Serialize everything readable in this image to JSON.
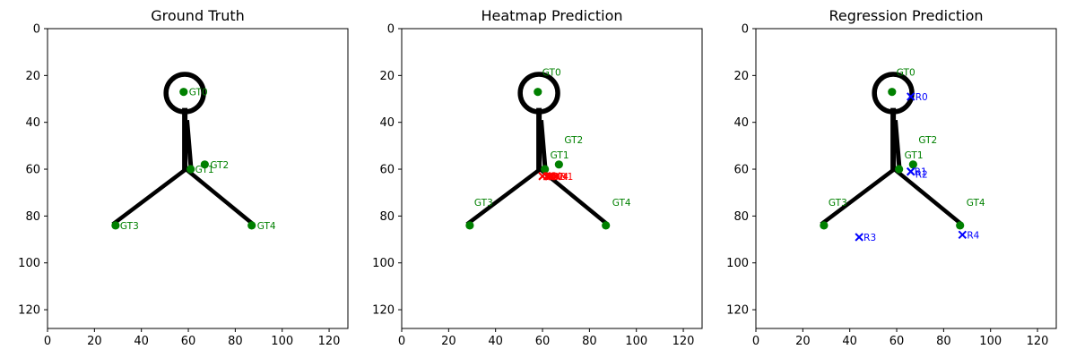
{
  "colors": {
    "ground_truth": "#008000",
    "heatmap": "#ff0000",
    "regression": "#0000ff",
    "figure": "#000000"
  },
  "chart_data": [
    {
      "type": "scatter",
      "title": "Ground Truth",
      "xlim": [
        0,
        128
      ],
      "ylim": [
        128,
        0
      ],
      "x_ticks": [
        0,
        20,
        40,
        60,
        80,
        100,
        120
      ],
      "y_ticks": [
        0,
        20,
        40,
        60,
        80,
        100,
        120
      ],
      "grid": false,
      "series": [
        {
          "role": "ground_truth",
          "marker": "circle",
          "points": [
            {
              "label": "GT0",
              "x": 58,
              "y": 27
            },
            {
              "label": "GT1",
              "x": 61,
              "y": 60
            },
            {
              "label": "GT2",
              "x": 67,
              "y": 58
            },
            {
              "label": "GT3",
              "x": 29,
              "y": 84
            },
            {
              "label": "GT4",
              "x": 87,
              "y": 84
            }
          ]
        }
      ]
    },
    {
      "type": "scatter",
      "title": "Heatmap Prediction",
      "xlim": [
        0,
        128
      ],
      "ylim": [
        128,
        0
      ],
      "x_ticks": [
        0,
        20,
        40,
        60,
        80,
        100,
        120
      ],
      "y_ticks": [
        0,
        20,
        40,
        60,
        80,
        100,
        120
      ],
      "grid": false,
      "series": [
        {
          "role": "ground_truth",
          "marker": "circle",
          "points": [
            {
              "label": "GT0",
              "x": 58,
              "y": 27
            },
            {
              "label": "GT1",
              "x": 61,
              "y": 60
            },
            {
              "label": "GT2",
              "x": 67,
              "y": 58
            },
            {
              "label": "GT3",
              "x": 29,
              "y": 84
            },
            {
              "label": "GT4",
              "x": 87,
              "y": 84
            }
          ]
        },
        {
          "role": "heatmap",
          "marker": "x",
          "points": [
            {
              "label": "H0",
              "x": 60,
              "y": 63
            },
            {
              "label": "H1",
              "x": 66,
              "y": 63
            },
            {
              "label": "H2",
              "x": 62,
              "y": 63
            },
            {
              "label": "H3",
              "x": 63,
              "y": 63
            },
            {
              "label": "H4",
              "x": 64,
              "y": 63
            }
          ]
        }
      ]
    },
    {
      "type": "scatter",
      "title": "Regression Prediction",
      "xlim": [
        0,
        128
      ],
      "ylim": [
        128,
        0
      ],
      "x_ticks": [
        0,
        20,
        40,
        60,
        80,
        100,
        120
      ],
      "y_ticks": [
        0,
        20,
        40,
        60,
        80,
        100,
        120
      ],
      "grid": false,
      "series": [
        {
          "role": "ground_truth",
          "marker": "circle",
          "points": [
            {
              "label": "GT0",
              "x": 58,
              "y": 27
            },
            {
              "label": "GT1",
              "x": 61,
              "y": 60
            },
            {
              "label": "GT2",
              "x": 67,
              "y": 58
            },
            {
              "label": "GT3",
              "x": 29,
              "y": 84
            },
            {
              "label": "GT4",
              "x": 87,
              "y": 84
            }
          ]
        },
        {
          "role": "regression",
          "marker": "x",
          "points": [
            {
              "label": "R0",
              "x": 66,
              "y": 29
            },
            {
              "label": "R1",
              "x": 66,
              "y": 61
            },
            {
              "label": "R2",
              "x": 66,
              "y": 61
            },
            {
              "label": "R3",
              "x": 44,
              "y": 89
            },
            {
              "label": "R4",
              "x": 88,
              "y": 88
            }
          ]
        }
      ]
    }
  ]
}
